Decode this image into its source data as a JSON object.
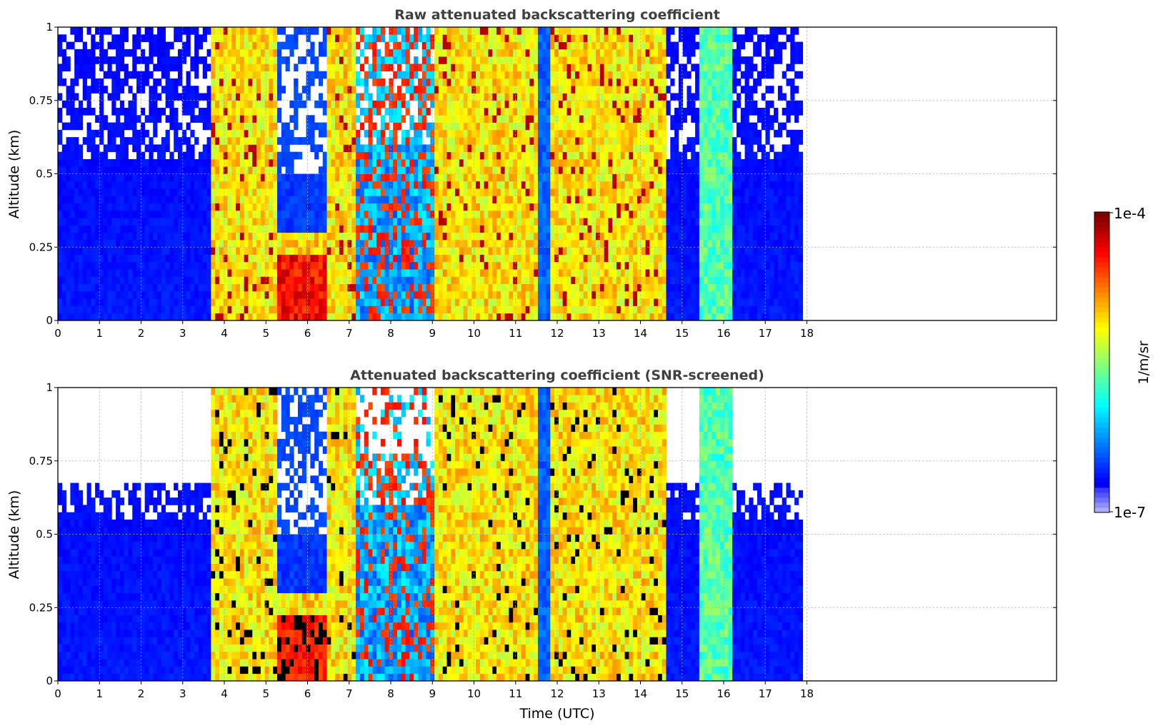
{
  "chart_data": [
    {
      "type": "heatmap",
      "title": "Raw attenuated backscattering coefficient",
      "xlabel": "",
      "ylabel": "Altitude (km)",
      "xlim": [
        0,
        24
      ],
      "ylim": [
        0,
        1
      ],
      "x_ticks": [
        "0",
        "1",
        "2",
        "3",
        "4",
        "5",
        "6",
        "7",
        "8",
        "9",
        "10",
        "11",
        "12",
        "13",
        "14",
        "15",
        "16",
        "17",
        "18"
      ],
      "y_ticks": [
        "0",
        "0.25",
        "0.5",
        "0.75",
        "1"
      ],
      "data_time_range": [
        0,
        17.9
      ],
      "grid": true,
      "regimes": [
        {
          "from": 0.0,
          "to": 3.7,
          "kind": "clear-noisy"
        },
        {
          "from": 3.7,
          "to": 5.3,
          "kind": "cloud-yellow"
        },
        {
          "from": 5.3,
          "to": 6.5,
          "kind": "low-cloud-red"
        },
        {
          "from": 6.5,
          "to": 7.2,
          "kind": "cloud-yellow"
        },
        {
          "from": 7.2,
          "to": 9.0,
          "kind": "mixed-streaks"
        },
        {
          "from": 9.0,
          "to": 11.5,
          "kind": "cloud-yellow"
        },
        {
          "from": 11.5,
          "to": 11.8,
          "kind": "gap-blue"
        },
        {
          "from": 11.8,
          "to": 14.6,
          "kind": "cloud-yellow"
        },
        {
          "from": 14.6,
          "to": 15.4,
          "kind": "clear-noisy"
        },
        {
          "from": 15.4,
          "to": 16.2,
          "kind": "cloud-cyan"
        },
        {
          "from": 16.2,
          "to": 17.9,
          "kind": "clear-noisy"
        }
      ]
    },
    {
      "type": "heatmap",
      "title": "Attenuated backscattering coefficient (SNR-screened)",
      "xlabel": "Time (UTC)",
      "ylabel": "Altitude (km)",
      "xlim": [
        0,
        24
      ],
      "ylim": [
        0,
        1
      ],
      "x_ticks": [
        "0",
        "1",
        "2",
        "3",
        "4",
        "5",
        "6",
        "7",
        "8",
        "9",
        "10",
        "11",
        "12",
        "13",
        "14",
        "15",
        "16",
        "17",
        "18"
      ],
      "y_ticks": [
        "0",
        "0.25",
        "0.5",
        "0.75",
        "1"
      ],
      "data_time_range": [
        0,
        17.9
      ],
      "grid": true
    }
  ],
  "colorbar": {
    "label": "1/m/sr",
    "max_label": "1e-4",
    "min_label": "1e-7",
    "colormap": "jet"
  }
}
